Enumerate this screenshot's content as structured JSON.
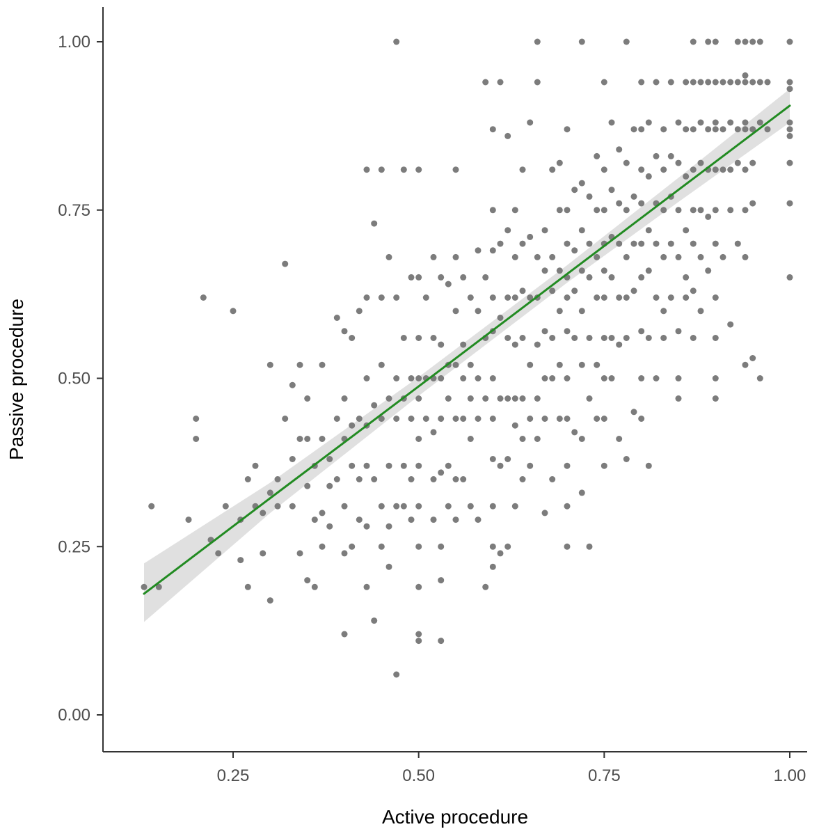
{
  "chart_data": {
    "type": "scatter",
    "title": "",
    "xlabel": "Active procedure",
    "ylabel": "Passive procedure",
    "xlim": [
      0.08,
      1.02
    ],
    "ylim": [
      -0.05,
      1.05
    ],
    "x_ticks": [
      0.25,
      0.5,
      0.75,
      1.0
    ],
    "x_tick_labels": [
      "0.25",
      "0.50",
      "0.75",
      "1.00"
    ],
    "y_ticks": [
      0.0,
      0.25,
      0.5,
      0.75,
      1.0
    ],
    "y_tick_labels": [
      "0.00",
      "0.25",
      "0.50",
      "0.75",
      "1.00"
    ],
    "grid": false,
    "legend": "none",
    "point_color": "#7c7c7c",
    "line_color": "#228B22",
    "band_color": "#cccccc",
    "axis_color": "#333333",
    "tick_label_color": "#4d4d4d",
    "trend_line": {
      "x": [
        0.13,
        0.3,
        0.5,
        0.7,
        0.85,
        1.0
      ],
      "y": [
        0.18,
        0.322,
        0.488,
        0.655,
        0.78,
        0.905
      ]
    },
    "confidence_band": {
      "x": [
        0.13,
        0.3,
        0.5,
        0.7,
        0.85,
        1.0
      ],
      "upper": [
        0.225,
        0.345,
        0.502,
        0.668,
        0.798,
        0.93
      ],
      "lower": [
        0.138,
        0.3,
        0.474,
        0.642,
        0.762,
        0.88
      ]
    },
    "points": [
      [
        0.13,
        0.19
      ],
      [
        0.15,
        0.19
      ],
      [
        0.14,
        0.31
      ],
      [
        0.19,
        0.29
      ],
      [
        0.2,
        0.44
      ],
      [
        0.2,
        0.41
      ],
      [
        0.21,
        0.62
      ],
      [
        0.22,
        0.26
      ],
      [
        0.23,
        0.24
      ],
      [
        0.24,
        0.31
      ],
      [
        0.25,
        0.6
      ],
      [
        0.26,
        0.29
      ],
      [
        0.26,
        0.23
      ],
      [
        0.27,
        0.35
      ],
      [
        0.27,
        0.19
      ],
      [
        0.28,
        0.31
      ],
      [
        0.28,
        0.37
      ],
      [
        0.29,
        0.3
      ],
      [
        0.29,
        0.24
      ],
      [
        0.3,
        0.52
      ],
      [
        0.3,
        0.33
      ],
      [
        0.3,
        0.17
      ],
      [
        0.31,
        0.35
      ],
      [
        0.31,
        0.31
      ],
      [
        0.32,
        0.67
      ],
      [
        0.32,
        0.44
      ],
      [
        0.33,
        0.49
      ],
      [
        0.33,
        0.38
      ],
      [
        0.33,
        0.31
      ],
      [
        0.34,
        0.52
      ],
      [
        0.34,
        0.41
      ],
      [
        0.34,
        0.24
      ],
      [
        0.35,
        0.47
      ],
      [
        0.35,
        0.41
      ],
      [
        0.35,
        0.34
      ],
      [
        0.35,
        0.2
      ],
      [
        0.36,
        0.37
      ],
      [
        0.36,
        0.29
      ],
      [
        0.36,
        0.19
      ],
      [
        0.37,
        0.52
      ],
      [
        0.37,
        0.41
      ],
      [
        0.37,
        0.3
      ],
      [
        0.37,
        0.25
      ],
      [
        0.38,
        0.38
      ],
      [
        0.38,
        0.34
      ],
      [
        0.38,
        0.28
      ],
      [
        0.39,
        0.59
      ],
      [
        0.39,
        0.44
      ],
      [
        0.39,
        0.35
      ],
      [
        0.4,
        0.57
      ],
      [
        0.4,
        0.47
      ],
      [
        0.4,
        0.41
      ],
      [
        0.4,
        0.31
      ],
      [
        0.4,
        0.24
      ],
      [
        0.4,
        0.12
      ],
      [
        0.41,
        0.56
      ],
      [
        0.41,
        0.43
      ],
      [
        0.41,
        0.37
      ],
      [
        0.41,
        0.25
      ],
      [
        0.42,
        0.6
      ],
      [
        0.42,
        0.44
      ],
      [
        0.42,
        0.35
      ],
      [
        0.42,
        0.29
      ],
      [
        0.43,
        0.81
      ],
      [
        0.43,
        0.62
      ],
      [
        0.43,
        0.5
      ],
      [
        0.43,
        0.43
      ],
      [
        0.43,
        0.37
      ],
      [
        0.43,
        0.28
      ],
      [
        0.43,
        0.19
      ],
      [
        0.44,
        0.73
      ],
      [
        0.44,
        0.46
      ],
      [
        0.44,
        0.35
      ],
      [
        0.44,
        0.14
      ],
      [
        0.45,
        0.81
      ],
      [
        0.45,
        0.62
      ],
      [
        0.45,
        0.52
      ],
      [
        0.45,
        0.44
      ],
      [
        0.45,
        0.31
      ],
      [
        0.45,
        0.25
      ],
      [
        0.46,
        0.68
      ],
      [
        0.46,
        0.47
      ],
      [
        0.46,
        0.37
      ],
      [
        0.46,
        0.28
      ],
      [
        0.46,
        0.22
      ],
      [
        0.47,
        1.0
      ],
      [
        0.47,
        0.62
      ],
      [
        0.47,
        0.5
      ],
      [
        0.47,
        0.44
      ],
      [
        0.47,
        0.31
      ],
      [
        0.47,
        0.06
      ],
      [
        0.48,
        0.81
      ],
      [
        0.48,
        0.56
      ],
      [
        0.48,
        0.47
      ],
      [
        0.48,
        0.37
      ],
      [
        0.48,
        0.31
      ],
      [
        0.49,
        0.65
      ],
      [
        0.49,
        0.5
      ],
      [
        0.49,
        0.44
      ],
      [
        0.49,
        0.35
      ],
      [
        0.49,
        0.29
      ],
      [
        0.5,
        0.81
      ],
      [
        0.5,
        0.65
      ],
      [
        0.5,
        0.56
      ],
      [
        0.5,
        0.5
      ],
      [
        0.5,
        0.47
      ],
      [
        0.5,
        0.41
      ],
      [
        0.5,
        0.37
      ],
      [
        0.5,
        0.31
      ],
      [
        0.5,
        0.25
      ],
      [
        0.5,
        0.19
      ],
      [
        0.5,
        0.12
      ],
      [
        0.5,
        0.11
      ],
      [
        0.51,
        0.62
      ],
      [
        0.51,
        0.5
      ],
      [
        0.51,
        0.44
      ],
      [
        0.52,
        0.68
      ],
      [
        0.52,
        0.56
      ],
      [
        0.52,
        0.5
      ],
      [
        0.52,
        0.42
      ],
      [
        0.52,
        0.35
      ],
      [
        0.52,
        0.29
      ],
      [
        0.53,
        0.65
      ],
      [
        0.53,
        0.55
      ],
      [
        0.53,
        0.5
      ],
      [
        0.53,
        0.44
      ],
      [
        0.53,
        0.36
      ],
      [
        0.53,
        0.25
      ],
      [
        0.53,
        0.2
      ],
      [
        0.53,
        0.11
      ],
      [
        0.54,
        0.64
      ],
      [
        0.54,
        0.52
      ],
      [
        0.54,
        0.47
      ],
      [
        0.54,
        0.37
      ],
      [
        0.54,
        0.31
      ],
      [
        0.55,
        0.81
      ],
      [
        0.55,
        0.68
      ],
      [
        0.55,
        0.6
      ],
      [
        0.55,
        0.52
      ],
      [
        0.55,
        0.44
      ],
      [
        0.55,
        0.35
      ],
      [
        0.55,
        0.29
      ],
      [
        0.56,
        0.65
      ],
      [
        0.56,
        0.55
      ],
      [
        0.56,
        0.5
      ],
      [
        0.56,
        0.44
      ],
      [
        0.56,
        0.35
      ],
      [
        0.57,
        0.62
      ],
      [
        0.57,
        0.52
      ],
      [
        0.57,
        0.47
      ],
      [
        0.57,
        0.41
      ],
      [
        0.57,
        0.31
      ],
      [
        0.58,
        0.69
      ],
      [
        0.58,
        0.6
      ],
      [
        0.58,
        0.5
      ],
      [
        0.58,
        0.44
      ],
      [
        0.58,
        0.29
      ],
      [
        0.59,
        0.94
      ],
      [
        0.59,
        0.65
      ],
      [
        0.59,
        0.56
      ],
      [
        0.59,
        0.47
      ],
      [
        0.59,
        0.19
      ],
      [
        0.6,
        0.87
      ],
      [
        0.6,
        0.75
      ],
      [
        0.6,
        0.69
      ],
      [
        0.6,
        0.62
      ],
      [
        0.6,
        0.57
      ],
      [
        0.6,
        0.5
      ],
      [
        0.6,
        0.44
      ],
      [
        0.6,
        0.38
      ],
      [
        0.6,
        0.31
      ],
      [
        0.6,
        0.25
      ],
      [
        0.6,
        0.22
      ],
      [
        0.61,
        0.94
      ],
      [
        0.61,
        0.7
      ],
      [
        0.61,
        0.59
      ],
      [
        0.61,
        0.47
      ],
      [
        0.61,
        0.37
      ],
      [
        0.61,
        0.24
      ],
      [
        0.62,
        0.86
      ],
      [
        0.62,
        0.72
      ],
      [
        0.62,
        0.62
      ],
      [
        0.62,
        0.56
      ],
      [
        0.62,
        0.47
      ],
      [
        0.62,
        0.38
      ],
      [
        0.62,
        0.25
      ],
      [
        0.63,
        0.75
      ],
      [
        0.63,
        0.68
      ],
      [
        0.63,
        0.62
      ],
      [
        0.63,
        0.55
      ],
      [
        0.63,
        0.47
      ],
      [
        0.63,
        0.43
      ],
      [
        0.63,
        0.31
      ],
      [
        0.64,
        0.81
      ],
      [
        0.64,
        0.7
      ],
      [
        0.64,
        0.63
      ],
      [
        0.64,
        0.56
      ],
      [
        0.64,
        0.47
      ],
      [
        0.64,
        0.41
      ],
      [
        0.64,
        0.35
      ],
      [
        0.65,
        0.88
      ],
      [
        0.65,
        0.71
      ],
      [
        0.65,
        0.62
      ],
      [
        0.65,
        0.52
      ],
      [
        0.65,
        0.44
      ],
      [
        0.65,
        0.37
      ],
      [
        0.66,
        1.0
      ],
      [
        0.66,
        0.94
      ],
      [
        0.66,
        0.68
      ],
      [
        0.66,
        0.62
      ],
      [
        0.66,
        0.55
      ],
      [
        0.66,
        0.47
      ],
      [
        0.66,
        0.41
      ],
      [
        0.67,
        0.72
      ],
      [
        0.67,
        0.66
      ],
      [
        0.67,
        0.57
      ],
      [
        0.67,
        0.5
      ],
      [
        0.67,
        0.44
      ],
      [
        0.67,
        0.3
      ],
      [
        0.68,
        0.81
      ],
      [
        0.68,
        0.68
      ],
      [
        0.68,
        0.63
      ],
      [
        0.68,
        0.56
      ],
      [
        0.68,
        0.5
      ],
      [
        0.68,
        0.35
      ],
      [
        0.69,
        0.82
      ],
      [
        0.69,
        0.75
      ],
      [
        0.69,
        0.66
      ],
      [
        0.69,
        0.6
      ],
      [
        0.69,
        0.52
      ],
      [
        0.69,
        0.44
      ],
      [
        0.7,
        0.87
      ],
      [
        0.7,
        0.75
      ],
      [
        0.7,
        0.7
      ],
      [
        0.7,
        0.65
      ],
      [
        0.7,
        0.62
      ],
      [
        0.7,
        0.57
      ],
      [
        0.7,
        0.5
      ],
      [
        0.7,
        0.44
      ],
      [
        0.7,
        0.37
      ],
      [
        0.7,
        0.31
      ],
      [
        0.7,
        0.25
      ],
      [
        0.71,
        0.78
      ],
      [
        0.71,
        0.69
      ],
      [
        0.71,
        0.63
      ],
      [
        0.71,
        0.56
      ],
      [
        0.71,
        0.42
      ],
      [
        0.72,
        1.0
      ],
      [
        0.72,
        0.79
      ],
      [
        0.72,
        0.72
      ],
      [
        0.72,
        0.66
      ],
      [
        0.72,
        0.6
      ],
      [
        0.72,
        0.52
      ],
      [
        0.72,
        0.41
      ],
      [
        0.72,
        0.33
      ],
      [
        0.73,
        0.77
      ],
      [
        0.73,
        0.7
      ],
      [
        0.73,
        0.65
      ],
      [
        0.73,
        0.56
      ],
      [
        0.73,
        0.47
      ],
      [
        0.73,
        0.25
      ],
      [
        0.74,
        0.83
      ],
      [
        0.74,
        0.75
      ],
      [
        0.74,
        0.68
      ],
      [
        0.74,
        0.62
      ],
      [
        0.74,
        0.52
      ],
      [
        0.74,
        0.44
      ],
      [
        0.75,
        0.94
      ],
      [
        0.75,
        0.81
      ],
      [
        0.75,
        0.75
      ],
      [
        0.75,
        0.7
      ],
      [
        0.75,
        0.66
      ],
      [
        0.75,
        0.62
      ],
      [
        0.75,
        0.56
      ],
      [
        0.75,
        0.5
      ],
      [
        0.75,
        0.44
      ],
      [
        0.75,
        0.37
      ],
      [
        0.76,
        0.88
      ],
      [
        0.76,
        0.78
      ],
      [
        0.76,
        0.71
      ],
      [
        0.76,
        0.65
      ],
      [
        0.76,
        0.56
      ],
      [
        0.76,
        0.5
      ],
      [
        0.77,
        0.84
      ],
      [
        0.77,
        0.76
      ],
      [
        0.77,
        0.7
      ],
      [
        0.77,
        0.62
      ],
      [
        0.77,
        0.55
      ],
      [
        0.77,
        0.41
      ],
      [
        0.78,
        1.0
      ],
      [
        0.78,
        0.82
      ],
      [
        0.78,
        0.75
      ],
      [
        0.78,
        0.68
      ],
      [
        0.78,
        0.62
      ],
      [
        0.78,
        0.56
      ],
      [
        0.78,
        0.38
      ],
      [
        0.79,
        0.87
      ],
      [
        0.79,
        0.77
      ],
      [
        0.79,
        0.7
      ],
      [
        0.79,
        0.63
      ],
      [
        0.79,
        0.45
      ],
      [
        0.8,
        0.94
      ],
      [
        0.8,
        0.87
      ],
      [
        0.8,
        0.81
      ],
      [
        0.8,
        0.76
      ],
      [
        0.8,
        0.7
      ],
      [
        0.8,
        0.65
      ],
      [
        0.8,
        0.57
      ],
      [
        0.8,
        0.5
      ],
      [
        0.8,
        0.44
      ],
      [
        0.81,
        0.88
      ],
      [
        0.81,
        0.8
      ],
      [
        0.81,
        0.72
      ],
      [
        0.81,
        0.66
      ],
      [
        0.81,
        0.56
      ],
      [
        0.81,
        0.37
      ],
      [
        0.82,
        0.94
      ],
      [
        0.82,
        0.83
      ],
      [
        0.82,
        0.76
      ],
      [
        0.82,
        0.7
      ],
      [
        0.82,
        0.62
      ],
      [
        0.82,
        0.5
      ],
      [
        0.83,
        0.87
      ],
      [
        0.83,
        0.81
      ],
      [
        0.83,
        0.75
      ],
      [
        0.83,
        0.68
      ],
      [
        0.83,
        0.6
      ],
      [
        0.83,
        0.56
      ],
      [
        0.84,
        0.94
      ],
      [
        0.84,
        0.83
      ],
      [
        0.84,
        0.77
      ],
      [
        0.84,
        0.7
      ],
      [
        0.84,
        0.62
      ],
      [
        0.85,
        0.88
      ],
      [
        0.85,
        0.82
      ],
      [
        0.85,
        0.75
      ],
      [
        0.85,
        0.68
      ],
      [
        0.85,
        0.57
      ],
      [
        0.85,
        0.5
      ],
      [
        0.85,
        0.47
      ],
      [
        0.86,
        0.94
      ],
      [
        0.86,
        0.87
      ],
      [
        0.86,
        0.8
      ],
      [
        0.86,
        0.72
      ],
      [
        0.86,
        0.65
      ],
      [
        0.86,
        0.62
      ],
      [
        0.87,
        1.0
      ],
      [
        0.87,
        0.94
      ],
      [
        0.87,
        0.87
      ],
      [
        0.87,
        0.81
      ],
      [
        0.87,
        0.75
      ],
      [
        0.87,
        0.7
      ],
      [
        0.87,
        0.63
      ],
      [
        0.87,
        0.56
      ],
      [
        0.88,
        0.94
      ],
      [
        0.88,
        0.88
      ],
      [
        0.88,
        0.82
      ],
      [
        0.88,
        0.75
      ],
      [
        0.88,
        0.68
      ],
      [
        0.88,
        0.6
      ],
      [
        0.89,
        1.0
      ],
      [
        0.89,
        0.94
      ],
      [
        0.89,
        0.87
      ],
      [
        0.89,
        0.81
      ],
      [
        0.89,
        0.74
      ],
      [
        0.89,
        0.66
      ],
      [
        0.9,
        1.0
      ],
      [
        0.9,
        0.94
      ],
      [
        0.9,
        0.88
      ],
      [
        0.9,
        0.87
      ],
      [
        0.9,
        0.81
      ],
      [
        0.9,
        0.75
      ],
      [
        0.9,
        0.7
      ],
      [
        0.9,
        0.62
      ],
      [
        0.9,
        0.56
      ],
      [
        0.9,
        0.5
      ],
      [
        0.9,
        0.47
      ],
      [
        0.91,
        0.94
      ],
      [
        0.91,
        0.87
      ],
      [
        0.91,
        0.81
      ],
      [
        0.91,
        0.68
      ],
      [
        0.92,
        0.94
      ],
      [
        0.92,
        0.88
      ],
      [
        0.92,
        0.81
      ],
      [
        0.92,
        0.75
      ],
      [
        0.92,
        0.58
      ],
      [
        0.93,
        1.0
      ],
      [
        0.93,
        0.94
      ],
      [
        0.93,
        0.87
      ],
      [
        0.93,
        0.82
      ],
      [
        0.93,
        0.7
      ],
      [
        0.94,
        1.0
      ],
      [
        0.94,
        0.95
      ],
      [
        0.94,
        0.94
      ],
      [
        0.94,
        0.88
      ],
      [
        0.94,
        0.87
      ],
      [
        0.94,
        0.81
      ],
      [
        0.94,
        0.75
      ],
      [
        0.94,
        0.68
      ],
      [
        0.94,
        0.52
      ],
      [
        0.95,
        1.0
      ],
      [
        0.95,
        0.94
      ],
      [
        0.95,
        0.87
      ],
      [
        0.95,
        0.82
      ],
      [
        0.95,
        0.76
      ],
      [
        0.95,
        0.53
      ],
      [
        0.96,
        1.0
      ],
      [
        0.96,
        0.94
      ],
      [
        0.96,
        0.88
      ],
      [
        0.96,
        0.5
      ],
      [
        0.97,
        0.94
      ],
      [
        0.97,
        0.87
      ],
      [
        1.0,
        1.0
      ],
      [
        1.0,
        0.94
      ],
      [
        1.0,
        0.93
      ],
      [
        1.0,
        0.88
      ],
      [
        1.0,
        0.87
      ],
      [
        1.0,
        0.86
      ],
      [
        1.0,
        0.82
      ],
      [
        1.0,
        0.76
      ],
      [
        1.0,
        0.65
      ]
    ]
  }
}
